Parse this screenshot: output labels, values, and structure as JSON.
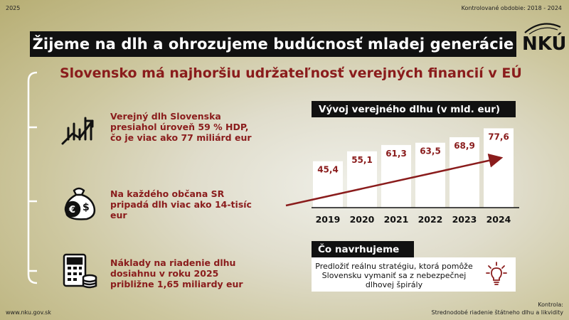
{
  "header": {
    "year": "2025",
    "period": "Kontrolované obdobie: 2018 - 2024",
    "logo_text": "NKÚ"
  },
  "headline": "Žijeme na dlh a ohrozujeme budúcnosť mladej generácie",
  "subheadline": "Slovensko má najhoršiu udržateľnosť verejných financií v EÚ",
  "facts": [
    {
      "text": "Verejný dlh Slovenska presiahol úroveň 59 % HDP, čo je viac ako 77 miliárd eur",
      "icon": "rising-chart-icon"
    },
    {
      "text": "Na každého občana SR pripadá dlh viac ako 14-tisíc eur",
      "icon": "money-bag-icon"
    },
    {
      "text": "Náklady na riadenie dlhu dosiahnu v roku 2025 približne 1,65 miliardy eur",
      "icon": "calculator-coins-icon"
    }
  ],
  "chart_data": {
    "type": "bar",
    "title": "Vývoj verejného dlhu (v mld. eur)",
    "categories": [
      "2019",
      "2020",
      "2021",
      "2022",
      "2023",
      "2024"
    ],
    "values": [
      45.4,
      55.1,
      61.3,
      63.5,
      68.9,
      77.6
    ],
    "value_labels": [
      "45,4",
      "55,1",
      "61,3",
      "63,5",
      "68,9",
      "77,6"
    ],
    "ylim": [
      0,
      80
    ],
    "grid": false,
    "colors": {
      "bar": "#ffffff",
      "label": "#8a1c1c",
      "trend": "#8a1c1c",
      "axis": "#111111"
    }
  },
  "proposal": {
    "title": "Čo navrhujeme",
    "text": "Predložiť reálnu stratégiu, ktorá pomôže Slovensku vymaniť sa z nebezpečnej dlhovej špirály",
    "icon": "lightbulb-icon"
  },
  "footer": {
    "website": "www.nku.gov.sk",
    "audit_label": "Kontrola:",
    "audit_name": "Strednodobé riadenie štátneho dlhu a likvidity"
  }
}
